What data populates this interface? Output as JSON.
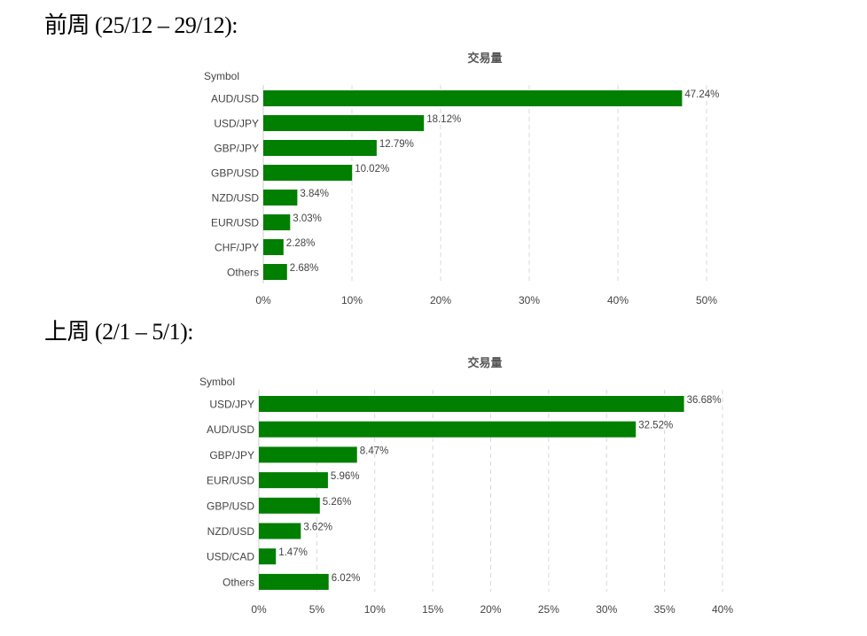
{
  "headings": {
    "prev_week": "前周 (25/12 – 29/12):",
    "last_week": "上周 (2/1 – 5/1):"
  },
  "colors": {
    "bar": "#007f00"
  },
  "chart_data": [
    {
      "type": "bar",
      "orientation": "horizontal",
      "title": "交易量",
      "ylabel": "Symbol",
      "xlabel": "",
      "categories": [
        "AUD/USD",
        "USD/JPY",
        "GBP/JPY",
        "GBP/USD",
        "NZD/USD",
        "EUR/USD",
        "CHF/JPY",
        "Others"
      ],
      "values": [
        47.24,
        18.12,
        12.79,
        10.02,
        3.84,
        3.03,
        2.28,
        2.68
      ],
      "data_labels": [
        "47.24%",
        "18.12%",
        "12.79%",
        "10.02%",
        "3.84%",
        "3.03%",
        "2.28%",
        "2.68%"
      ],
      "xlim": [
        0,
        50
      ],
      "xticks": [
        0,
        10,
        20,
        30,
        40,
        50
      ],
      "xtick_labels": [
        "0%",
        "10%",
        "20%",
        "30%",
        "40%",
        "50%"
      ],
      "grid": true
    },
    {
      "type": "bar",
      "orientation": "horizontal",
      "title": "交易量",
      "ylabel": "Symbol",
      "xlabel": "",
      "categories": [
        "USD/JPY",
        "AUD/USD",
        "GBP/JPY",
        "EUR/USD",
        "GBP/USD",
        "NZD/USD",
        "USD/CAD",
        "Others"
      ],
      "values": [
        36.68,
        32.52,
        8.47,
        5.96,
        5.26,
        3.62,
        1.47,
        6.02
      ],
      "data_labels": [
        "36.68%",
        "32.52%",
        "8.47%",
        "5.96%",
        "5.26%",
        "3.62%",
        "1.47%",
        "6.02%"
      ],
      "xlim": [
        0,
        40
      ],
      "xticks": [
        0,
        5,
        10,
        15,
        20,
        25,
        30,
        35,
        40
      ],
      "xtick_labels": [
        "0%",
        "5%",
        "10%",
        "15%",
        "20%",
        "25%",
        "30%",
        "35%",
        "40%"
      ],
      "grid": true
    }
  ]
}
